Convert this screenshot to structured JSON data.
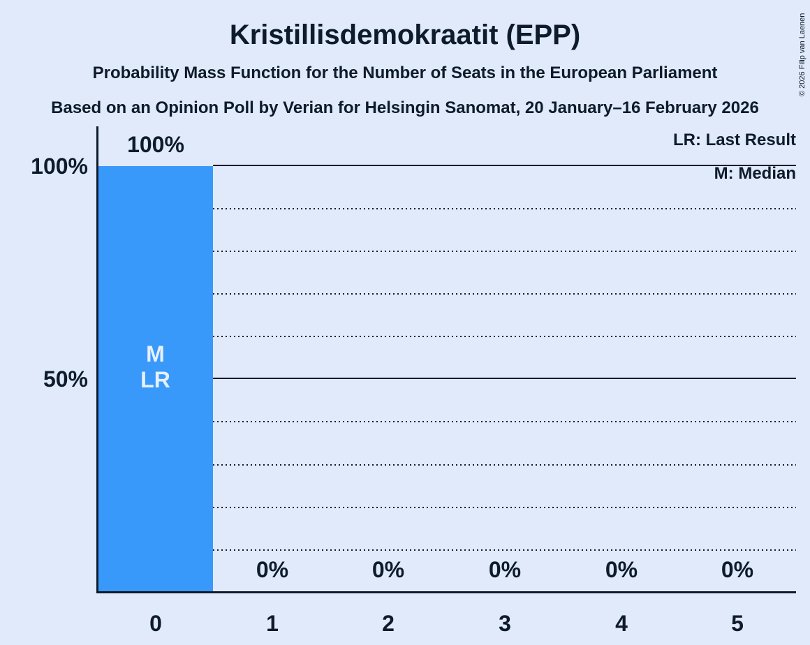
{
  "title": "Kristillisdemokraatit (EPP)",
  "subtitle": "Probability Mass Function for the Number of Seats in the European Parliament",
  "source_line": "Based on an Opinion Poll by Verian for Helsingin Sanomat, 20 January–16 February 2026",
  "copyright": "© 2026 Filip van Laenen",
  "legend": {
    "last_result": "LR: Last Result",
    "median": "M: Median"
  },
  "colors": {
    "background": "#e0eafb",
    "bar": "#3899fb",
    "text": "#0d1b2a",
    "bar_annotation_text": "#e7f0fc"
  },
  "chart_data": {
    "type": "bar",
    "title": "Kristillisdemokraatit (EPP)",
    "categories": [
      "0",
      "1",
      "2",
      "3",
      "4",
      "5"
    ],
    "values": [
      100,
      0,
      0,
      0,
      0,
      0
    ],
    "value_labels": [
      "100%",
      "0%",
      "0%",
      "0%",
      "0%",
      "0%"
    ],
    "ylim": [
      0,
      100
    ],
    "ytick_labels": [
      "100%",
      "50%"
    ],
    "ytick_values": [
      100,
      50
    ],
    "grid": "horizontal dotted lines every 10%, solid lines at 50% and 100%",
    "legend_position": "top-right",
    "bar_annotations": [
      "M",
      "LR"
    ],
    "annotated_category": "0"
  }
}
